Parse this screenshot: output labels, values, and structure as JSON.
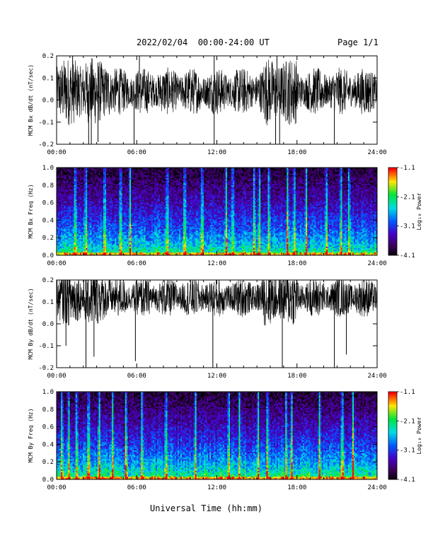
{
  "header": {
    "title": "2022/02/04  00:00-24:00 UT",
    "page": "Page 1/1"
  },
  "xlabel": "Universal Time (hh:mm)",
  "chart_data": [
    {
      "type": "line",
      "ylabel": "MCM Bx dB/dt (nT/sec)",
      "xlim": [
        0,
        24
      ],
      "ylim": [
        -0.2,
        0.2
      ],
      "xticks": [
        "00:00",
        "06:00",
        "12:00",
        "18:00",
        "24:00"
      ],
      "yticks": [
        "-0.2",
        "-0.1",
        "0.0",
        "0.1",
        "0.2"
      ],
      "ytick_values": [
        -0.2,
        -0.1,
        0.0,
        0.1,
        0.2
      ],
      "baseline": 0.04,
      "noise_amplitude": 0.06,
      "spikes": [
        {
          "x": 2.4,
          "y": -0.2
        },
        {
          "x": 2.6,
          "y": -0.2
        },
        {
          "x": 3.1,
          "y": -0.19
        },
        {
          "x": 5.8,
          "y": -0.2
        },
        {
          "x": 11.8,
          "y": -0.2
        },
        {
          "x": 11.8,
          "y": 0.2
        },
        {
          "x": 16.4,
          "y": -0.2
        },
        {
          "x": 16.7,
          "y": -0.2
        },
        {
          "x": 20.8,
          "y": -0.2
        },
        {
          "x": 1.2,
          "y": 0.2
        },
        {
          "x": 6.2,
          "y": 0.2
        },
        {
          "x": 16.5,
          "y": 0.2
        }
      ],
      "color": "#000000"
    },
    {
      "type": "heatmap",
      "ylabel": "MCM Bx Freq (Hz)",
      "xlim": [
        0,
        24
      ],
      "ylim": [
        0.0,
        1.0
      ],
      "xticks": [
        "00:00",
        "06:00",
        "12:00",
        "18:00",
        "24:00"
      ],
      "yticks": [
        "0.0",
        "0.2",
        "0.4",
        "0.6",
        "0.8",
        "1.0"
      ],
      "ytick_values": [
        0.0,
        0.2,
        0.4,
        0.6,
        0.8,
        1.0
      ],
      "colorbar": {
        "label": "Log₁₀ Power",
        "ticks": [
          "-1.1",
          "-2.1",
          "-3.1",
          "-4.1"
        ],
        "range": [
          -4.1,
          -1.1
        ]
      },
      "bright_bands": [
        1.4,
        2.2,
        3.6,
        4.8,
        5.5,
        8.3,
        9.6,
        10.9,
        12.7,
        13.2,
        14.8,
        15.2,
        15.9,
        17.3,
        17.8,
        18.7,
        20.2,
        21.3,
        21.9
      ],
      "intensity": 0.55
    },
    {
      "type": "line",
      "ylabel": "MCM By dB/dt (nT/sec)",
      "xlim": [
        0,
        24
      ],
      "ylim": [
        -0.2,
        0.2
      ],
      "xticks": [
        "00:00",
        "06:00",
        "12:00",
        "18:00",
        "24:00"
      ],
      "yticks": [
        "-0.2",
        "-0.1",
        "0.0",
        "0.1",
        "0.2"
      ],
      "ytick_values": [
        -0.2,
        -0.1,
        0.0,
        0.1,
        0.2
      ],
      "baseline": 0.12,
      "noise_amplitude": 0.05,
      "spikes": [
        {
          "x": 2.2,
          "y": -0.2
        },
        {
          "x": 2.8,
          "y": -0.15
        },
        {
          "x": 5.9,
          "y": -0.17
        },
        {
          "x": 11.7,
          "y": -0.2
        },
        {
          "x": 16.9,
          "y": -0.2
        },
        {
          "x": 20.8,
          "y": -0.2
        },
        {
          "x": 21.7,
          "y": -0.14
        },
        {
          "x": 0.7,
          "y": -0.1
        }
      ],
      "color": "#000000"
    },
    {
      "type": "heatmap",
      "ylabel": "MCM By Freq (Hz)",
      "xlim": [
        0,
        24
      ],
      "ylim": [
        0.0,
        1.0
      ],
      "xticks": [
        "00:00",
        "06:00",
        "12:00",
        "18:00",
        "24:00"
      ],
      "yticks": [
        "0.0",
        "0.2",
        "0.4",
        "0.6",
        "0.8",
        "1.0"
      ],
      "ytick_values": [
        0.0,
        0.2,
        0.4,
        0.6,
        0.8,
        1.0
      ],
      "colorbar": {
        "label": "Log₁₀ Power",
        "ticks": [
          "-1.1",
          "-2.1",
          "-3.1",
          "-4.1"
        ],
        "range": [
          -4.1,
          -1.1
        ]
      },
      "bright_bands": [
        0.4,
        0.9,
        1.5,
        2.4,
        3.2,
        4.2,
        5.2,
        6.4,
        8.2,
        10.4,
        12.9,
        13.7,
        15.1,
        15.8,
        17.2,
        17.6,
        19.7,
        21.4,
        22.2
      ],
      "intensity": 0.7
    }
  ]
}
